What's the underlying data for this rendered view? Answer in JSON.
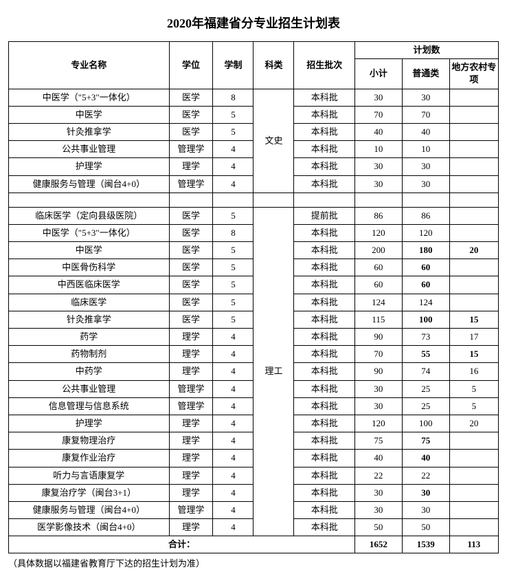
{
  "title": "2020年福建省分专业招生计划表",
  "headers": {
    "major": "专业名称",
    "degree": "学位",
    "years": "学制",
    "category": "科类",
    "batch": "招生批次",
    "plan_group": "计划数",
    "subtotal": "小计",
    "normal": "普通类",
    "rural": "地方农村专项"
  },
  "categories": {
    "wenshi": "文史",
    "ligong": "理工"
  },
  "group1": [
    {
      "major": "中医学（\"5+3\"一体化）",
      "degree": "医学",
      "years": "8",
      "batch": "本科批",
      "sub": "30",
      "norm": "30",
      "rural": ""
    },
    {
      "major": "中医学",
      "degree": "医学",
      "years": "5",
      "batch": "本科批",
      "sub": "70",
      "norm": "70",
      "rural": ""
    },
    {
      "major": "针灸推拿学",
      "degree": "医学",
      "years": "5",
      "batch": "本科批",
      "sub": "40",
      "norm": "40",
      "rural": ""
    },
    {
      "major": "公共事业管理",
      "degree": "管理学",
      "years": "4",
      "batch": "本科批",
      "sub": "10",
      "norm": "10",
      "rural": ""
    },
    {
      "major": "护理学",
      "degree": "理学",
      "years": "4",
      "batch": "本科批",
      "sub": "30",
      "norm": "30",
      "rural": ""
    },
    {
      "major": "健康服务与管理（闽台4+0）",
      "degree": "管理学",
      "years": "4",
      "batch": "本科批",
      "sub": "30",
      "norm": "30",
      "rural": ""
    }
  ],
  "group2": [
    {
      "major": "临床医学（定向县级医院）",
      "degree": "医学",
      "years": "5",
      "batch": "提前批",
      "sub": "86",
      "norm": "86",
      "rural": "",
      "b": false
    },
    {
      "major": "中医学（\"5+3\"一体化）",
      "degree": "医学",
      "years": "8",
      "batch": "本科批",
      "sub": "120",
      "norm": "120",
      "rural": "",
      "b": false
    },
    {
      "major": "中医学",
      "degree": "医学",
      "years": "5",
      "batch": "本科批",
      "sub": "200",
      "norm": "180",
      "rural": "20",
      "b": true
    },
    {
      "major": "中医骨伤科学",
      "degree": "医学",
      "years": "5",
      "batch": "本科批",
      "sub": "60",
      "norm": "60",
      "rural": "",
      "b": true
    },
    {
      "major": "中西医临床医学",
      "degree": "医学",
      "years": "5",
      "batch": "本科批",
      "sub": "60",
      "norm": "60",
      "rural": "",
      "b": true
    },
    {
      "major": "临床医学",
      "degree": "医学",
      "years": "5",
      "batch": "本科批",
      "sub": "124",
      "norm": "124",
      "rural": "",
      "b": false
    },
    {
      "major": "针灸推拿学",
      "degree": "医学",
      "years": "5",
      "batch": "本科批",
      "sub": "115",
      "norm": "100",
      "rural": "15",
      "b": true
    },
    {
      "major": "药学",
      "degree": "理学",
      "years": "4",
      "batch": "本科批",
      "sub": "90",
      "norm": "73",
      "rural": "17",
      "b": false
    },
    {
      "major": "药物制剂",
      "degree": "理学",
      "years": "4",
      "batch": "本科批",
      "sub": "70",
      "norm": "55",
      "rural": "15",
      "b": true
    },
    {
      "major": "中药学",
      "degree": "理学",
      "years": "4",
      "batch": "本科批",
      "sub": "90",
      "norm": "74",
      "rural": "16",
      "b": false
    },
    {
      "major": "公共事业管理",
      "degree": "管理学",
      "years": "4",
      "batch": "本科批",
      "sub": "30",
      "norm": "25",
      "rural": "5",
      "b": false
    },
    {
      "major": "信息管理与信息系统",
      "degree": "管理学",
      "years": "4",
      "batch": "本科批",
      "sub": "30",
      "norm": "25",
      "rural": "5",
      "b": false
    },
    {
      "major": "护理学",
      "degree": "理学",
      "years": "4",
      "batch": "本科批",
      "sub": "120",
      "norm": "100",
      "rural": "20",
      "b": false
    },
    {
      "major": "康复物理治疗",
      "degree": "理学",
      "years": "4",
      "batch": "本科批",
      "sub": "75",
      "norm": "75",
      "rural": "",
      "b": true
    },
    {
      "major": "康复作业治疗",
      "degree": "理学",
      "years": "4",
      "batch": "本科批",
      "sub": "40",
      "norm": "40",
      "rural": "",
      "b": true
    },
    {
      "major": "听力与言语康复学",
      "degree": "理学",
      "years": "4",
      "batch": "本科批",
      "sub": "22",
      "norm": "22",
      "rural": "",
      "b": false
    },
    {
      "major": "康复治疗学（闽台3+1）",
      "degree": "理学",
      "years": "4",
      "batch": "本科批",
      "sub": "30",
      "norm": "30",
      "rural": "",
      "b": true
    },
    {
      "major": "健康服务与管理（闽台4+0）",
      "degree": "管理学",
      "years": "4",
      "batch": "本科批",
      "sub": "30",
      "norm": "30",
      "rural": "",
      "b": false
    },
    {
      "major": "医学影像技术（闽台4+0）",
      "degree": "理学",
      "years": "4",
      "batch": "本科批",
      "sub": "50",
      "norm": "50",
      "rural": "",
      "b": false
    }
  ],
  "total": {
    "label": "合计：",
    "sub": "1652",
    "norm": "1539",
    "rural": "113"
  },
  "footnote": "（具体数据以福建省教育厅下达的招生计划为准）"
}
